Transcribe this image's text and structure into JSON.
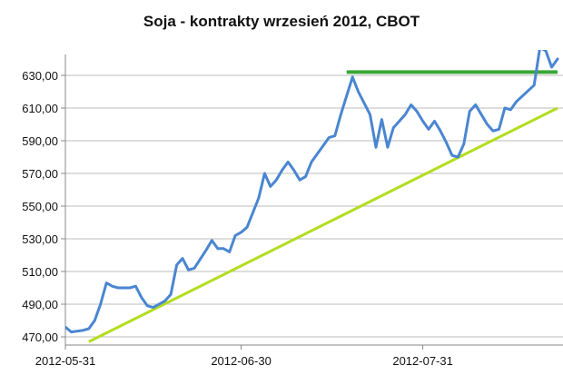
{
  "chart_data": {
    "type": "line",
    "title": "Soja - kontrakty wrzesień 2012, CBOT",
    "xlabel": "",
    "ylabel": "",
    "ylim": [
      465,
      640
    ],
    "yticks": [
      "470,00",
      "490,00",
      "510,00",
      "530,00",
      "550,00",
      "570,00",
      "590,00",
      "610,00",
      "630,00"
    ],
    "ytick_values": [
      470,
      490,
      510,
      530,
      550,
      570,
      590,
      610,
      630
    ],
    "xticks": [
      "2012-05-31",
      "2012-06-30",
      "2012-07-31"
    ],
    "xtick_values": [
      0,
      30,
      61
    ],
    "xlim": [
      0,
      84
    ],
    "grid": "horizontal",
    "series": [
      {
        "color": "#4a86d1",
        "points": [
          [
            0,
            476
          ],
          [
            1,
            473
          ],
          [
            3,
            474
          ],
          [
            4,
            475
          ],
          [
            5,
            480
          ],
          [
            6,
            490
          ],
          [
            7,
            503
          ],
          [
            8,
            501
          ],
          [
            9,
            500
          ],
          [
            11,
            500
          ],
          [
            12,
            501
          ],
          [
            13,
            494
          ],
          [
            14,
            489
          ],
          [
            15,
            488
          ],
          [
            17,
            492
          ],
          [
            18,
            496
          ],
          [
            19,
            514
          ],
          [
            20,
            518
          ],
          [
            21,
            511
          ],
          [
            22,
            512
          ],
          [
            24,
            523
          ],
          [
            25,
            529
          ],
          [
            26,
            524
          ],
          [
            27,
            524
          ],
          [
            28,
            522
          ],
          [
            29,
            532
          ],
          [
            30,
            534
          ],
          [
            31,
            537
          ],
          [
            33,
            555
          ],
          [
            34,
            570
          ],
          [
            35,
            562
          ],
          [
            36,
            566
          ],
          [
            37,
            572
          ],
          [
            38,
            577
          ],
          [
            39,
            572
          ],
          [
            40,
            566
          ],
          [
            41,
            568
          ],
          [
            42,
            577
          ],
          [
            43,
            582
          ],
          [
            45,
            592
          ],
          [
            46,
            593
          ],
          [
            47,
            606
          ],
          [
            49,
            629
          ],
          [
            50,
            620
          ],
          [
            52,
            606
          ],
          [
            53,
            586
          ],
          [
            54,
            603
          ],
          [
            55,
            586
          ],
          [
            56,
            598
          ],
          [
            58,
            606
          ],
          [
            59,
            612
          ],
          [
            60,
            608
          ],
          [
            61,
            602
          ],
          [
            62,
            597
          ],
          [
            63,
            602
          ],
          [
            64,
            596
          ],
          [
            65,
            589
          ],
          [
            66,
            581
          ],
          [
            67,
            580
          ],
          [
            68,
            588
          ],
          [
            69,
            608
          ],
          [
            70,
            612
          ],
          [
            71,
            606
          ],
          [
            72,
            600
          ],
          [
            73,
            596
          ],
          [
            74,
            597
          ],
          [
            75,
            610
          ],
          [
            76,
            609
          ],
          [
            77,
            614
          ],
          [
            80,
            624
          ],
          [
            81,
            647
          ],
          [
            82,
            645
          ],
          [
            83,
            635
          ],
          [
            84,
            640
          ]
        ]
      }
    ],
    "annotations": [
      {
        "type": "resistance-line",
        "color": "#3aa635",
        "points": [
          [
            48,
            632
          ],
          [
            84,
            632
          ]
        ]
      },
      {
        "type": "trend-line",
        "color": "#b3dd1f",
        "points": [
          [
            4,
            467
          ],
          [
            84,
            610
          ]
        ]
      }
    ]
  }
}
